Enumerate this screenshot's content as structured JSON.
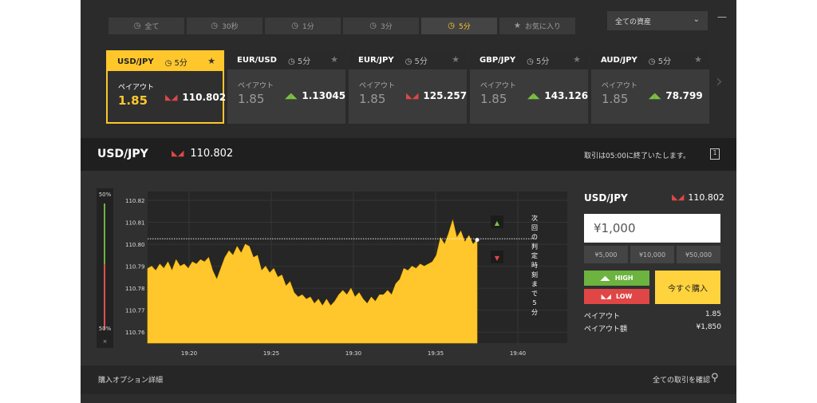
{
  "tabs": [
    {
      "label": "全て",
      "icon": "clock-icon",
      "active": false
    },
    {
      "label": "30秒",
      "icon": "clock-icon",
      "active": false
    },
    {
      "label": "1分",
      "icon": "clock-icon",
      "active": false
    },
    {
      "label": "3分",
      "icon": "clock-icon",
      "active": false
    },
    {
      "label": "5分",
      "icon": "clock-icon",
      "active": true
    },
    {
      "label": "お気に入り",
      "icon": "star-icon",
      "active": false
    }
  ],
  "asset_select": {
    "value": "全ての資産"
  },
  "cards": [
    {
      "pair": "USD/JPY",
      "time": "5分",
      "payout_label": "ペイアウト",
      "payout": "1.85",
      "rate": "110.802",
      "dir": "down",
      "active": true
    },
    {
      "pair": "EUR/USD",
      "time": "5分",
      "payout_label": "ペイアウト",
      "payout": "1.85",
      "rate": "1.13045",
      "dir": "up",
      "active": false
    },
    {
      "pair": "EUR/JPY",
      "time": "5分",
      "payout_label": "ペイアウト",
      "payout": "1.85",
      "rate": "125.257",
      "dir": "down",
      "active": false
    },
    {
      "pair": "GBP/JPY",
      "time": "5分",
      "payout_label": "ペイアウト",
      "payout": "1.85",
      "rate": "143.126",
      "dir": "up",
      "active": false
    },
    {
      "pair": "AUD/JPY",
      "time": "5分",
      "payout_label": "ペイアウト",
      "payout": "1.85",
      "rate": "78.799",
      "dir": "up",
      "active": false
    }
  ],
  "header": {
    "symbol": "USD/JPY",
    "rate": "110.802",
    "note": "取引は05:00に終了いたします。"
  },
  "meter": {
    "top_label": "50%",
    "bottom_label": "50%",
    "close": "×"
  },
  "chart_data": {
    "type": "area",
    "x_ticks": [
      "19:20",
      "19:25",
      "19:30",
      "19:35",
      "19:40"
    ],
    "y_ticks": [
      "110.82",
      "110.81",
      "110.80",
      "110.79",
      "110.78",
      "110.77",
      "110.76"
    ],
    "ylim": [
      110.755,
      110.824
    ],
    "strike": 110.8025,
    "current": 110.802,
    "side_label": "次回の判定時刻まで5分",
    "series": [
      {
        "values": [
          110.789,
          110.79,
          110.788,
          110.791,
          110.789,
          110.792,
          110.788,
          110.793,
          110.79,
          110.791,
          110.789,
          110.792,
          110.791,
          110.793,
          110.792,
          110.794,
          110.788,
          110.784,
          110.789,
          110.794,
          110.797,
          110.795,
          110.799,
          110.796,
          110.8,
          110.799,
          110.794,
          110.795,
          110.788,
          110.79,
          110.787,
          110.789,
          110.785,
          110.786,
          110.781,
          110.783,
          110.778,
          110.776,
          110.777,
          110.775,
          110.776,
          110.773,
          110.775,
          110.772,
          110.775,
          110.772,
          110.774,
          110.777,
          110.779,
          110.777,
          110.78,
          110.776,
          110.778,
          110.775,
          110.773,
          110.776,
          110.774,
          110.777,
          110.777,
          110.779,
          110.777,
          110.782,
          110.784,
          110.789,
          110.788,
          110.79,
          110.789,
          110.791,
          110.79,
          110.791,
          110.792,
          110.795,
          110.803,
          110.8,
          110.805,
          110.811,
          110.803,
          110.806,
          110.801,
          110.804,
          110.8,
          110.802
        ]
      }
    ]
  },
  "panel": {
    "symbol": "USD/JPY",
    "rate": "110.802",
    "amount": "¥1,000",
    "presets": [
      "¥5,000",
      "¥10,000",
      "¥50,000"
    ],
    "high_label": "HIGH",
    "low_label": "LOW",
    "buy_label": "今すぐ購入",
    "payout_label": "ペイアウト",
    "payout_value": "1.85",
    "payout_amount_label": "ペイアウト額",
    "payout_amount_value": "¥1,850"
  },
  "footer": {
    "left": "購入オプション詳細",
    "right": "全ての取引を確認"
  },
  "colors": {
    "accent": "#ffc72c",
    "up": "#7bc043",
    "down": "#e04646",
    "background": "#2b2b2b"
  }
}
